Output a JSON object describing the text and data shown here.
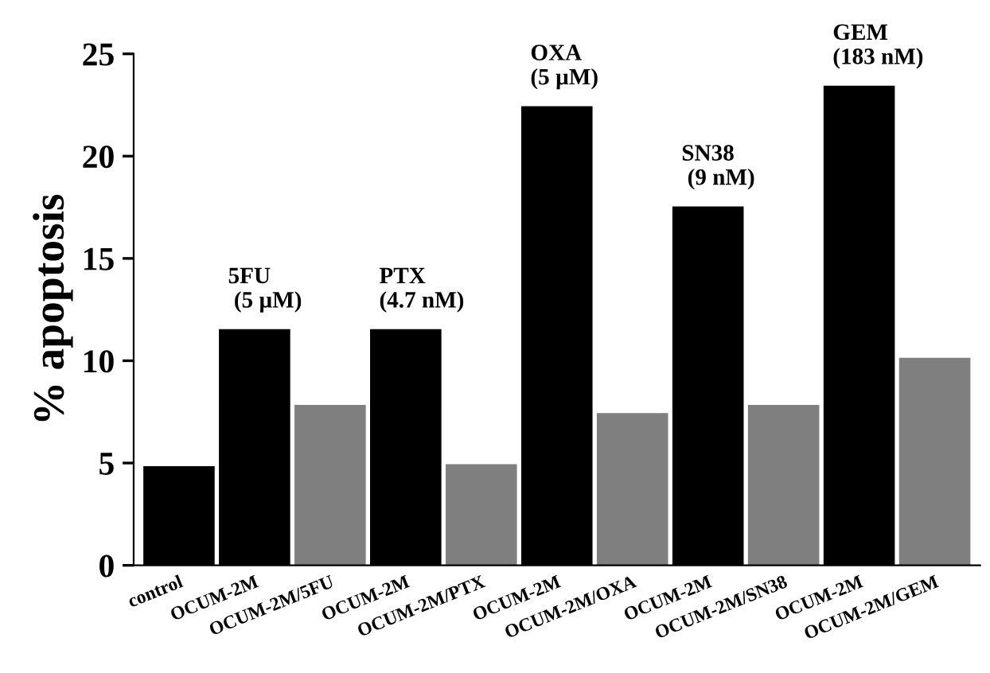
{
  "chart_data": {
    "type": "bar",
    "ylabel": "% apoptosis",
    "categories": [
      "control",
      "OCUM-2M",
      "OCUM-2M/5FU",
      "OCUM-2M",
      "OCUM-2M/PTX",
      "OCUM-2M",
      "OCUM-2M/OXA",
      "OCUM-2M",
      "OCUM-2M/SN38",
      "OCUM-2M",
      "OCUM-2M/GEM"
    ],
    "values": [
      4.8,
      11.5,
      7.8,
      11.5,
      4.9,
      22.4,
      7.4,
      17.5,
      7.8,
      23.4,
      10.1
    ],
    "colors": [
      "#000000",
      "#000000",
      "#7f7f7f",
      "#000000",
      "#7f7f7f",
      "#000000",
      "#7f7f7f",
      "#000000",
      "#7f7f7f",
      "#000000",
      "#7f7f7f"
    ],
    "annotations": [
      "5FU\n (5 µM)",
      "PTX\n(4.7 nM)",
      "OXA\n(5 µM)",
      "SN38\n (9 nM)",
      "GEM\n(183 nM)"
    ],
    "ylim": [
      0,
      25
    ],
    "yticks": [
      0,
      5,
      10,
      15,
      20,
      25
    ],
    "grid": false,
    "legend": false
  }
}
